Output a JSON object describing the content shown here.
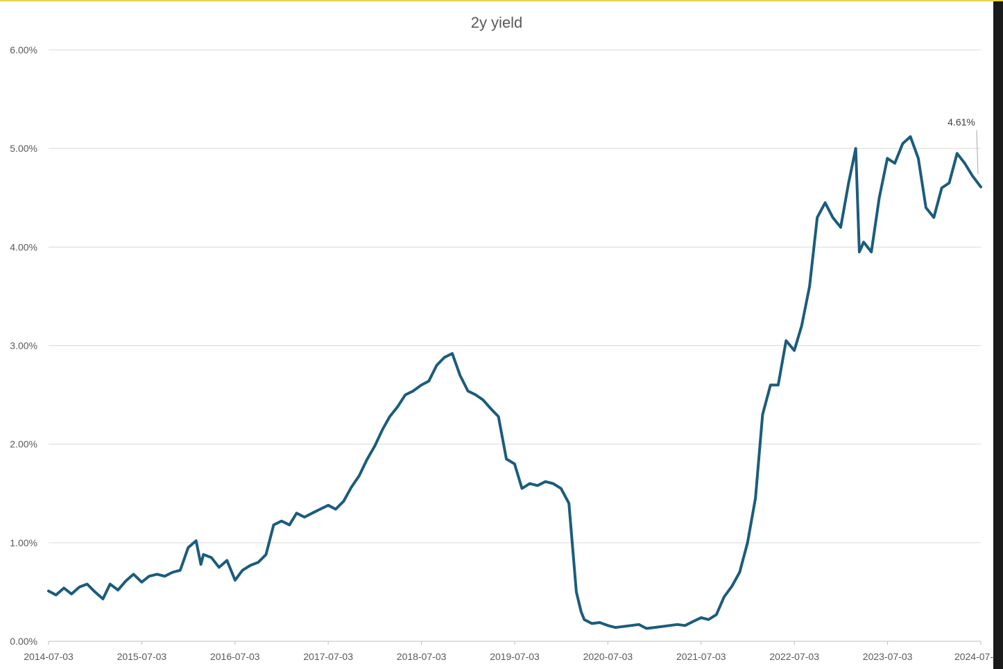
{
  "chart_data": {
    "type": "line",
    "title": "2y yield",
    "xlabel": "",
    "ylabel": "",
    "x_ticks": [
      "2014-07-03",
      "2015-07-03",
      "2016-07-03",
      "2017-07-03",
      "2018-07-03",
      "2019-07-03",
      "2020-07-03",
      "2021-07-03",
      "2022-07-03",
      "2023-07-03",
      "2024-07-"
    ],
    "y_ticks": [
      {
        "value": 0.0,
        "label": "0.00%"
      },
      {
        "value": 1.0,
        "label": "1.00%"
      },
      {
        "value": 2.0,
        "label": "2.00%"
      },
      {
        "value": 3.0,
        "label": "3.00%"
      },
      {
        "value": 4.0,
        "label": "4.00%"
      },
      {
        "value": 5.0,
        "label": "5.00%"
      },
      {
        "value": 6.0,
        "label": "6.00%"
      }
    ],
    "ylim": [
      0,
      6
    ],
    "xlim": [
      "2014-07-03",
      "2024-07-03"
    ],
    "grid": "horizontal",
    "legend": "none",
    "line_color": "#1b5c7c",
    "grid_color": "#d9d9d9",
    "end_label": "4.61%",
    "series": [
      {
        "values": [
          [
            "2014-07-03",
            0.51
          ],
          [
            "2014-08-01",
            0.47
          ],
          [
            "2014-09-01",
            0.54
          ],
          [
            "2014-10-01",
            0.48
          ],
          [
            "2014-11-01",
            0.55
          ],
          [
            "2014-12-01",
            0.58
          ],
          [
            "2015-01-01",
            0.5
          ],
          [
            "2015-02-01",
            0.43
          ],
          [
            "2015-03-01",
            0.58
          ],
          [
            "2015-04-01",
            0.52
          ],
          [
            "2015-05-01",
            0.61
          ],
          [
            "2015-06-01",
            0.68
          ],
          [
            "2015-07-03",
            0.6
          ],
          [
            "2015-08-01",
            0.66
          ],
          [
            "2015-09-01",
            0.68
          ],
          [
            "2015-10-01",
            0.66
          ],
          [
            "2015-11-01",
            0.7
          ],
          [
            "2015-12-01",
            0.72
          ],
          [
            "2016-01-01",
            0.95
          ],
          [
            "2016-02-01",
            1.02
          ],
          [
            "2016-02-20",
            0.78
          ],
          [
            "2016-03-01",
            0.88
          ],
          [
            "2016-04-01",
            0.85
          ],
          [
            "2016-05-01",
            0.75
          ],
          [
            "2016-06-01",
            0.82
          ],
          [
            "2016-07-03",
            0.62
          ],
          [
            "2016-08-01",
            0.72
          ],
          [
            "2016-09-01",
            0.77
          ],
          [
            "2016-10-01",
            0.8
          ],
          [
            "2016-11-01",
            0.88
          ],
          [
            "2016-12-01",
            1.18
          ],
          [
            "2017-01-01",
            1.22
          ],
          [
            "2017-02-01",
            1.18
          ],
          [
            "2017-03-01",
            1.3
          ],
          [
            "2017-04-01",
            1.26
          ],
          [
            "2017-05-01",
            1.3
          ],
          [
            "2017-06-01",
            1.34
          ],
          [
            "2017-07-03",
            1.38
          ],
          [
            "2017-08-01",
            1.34
          ],
          [
            "2017-09-01",
            1.42
          ],
          [
            "2017-10-01",
            1.56
          ],
          [
            "2017-11-01",
            1.68
          ],
          [
            "2017-12-01",
            1.84
          ],
          [
            "2018-01-01",
            1.98
          ],
          [
            "2018-02-01",
            2.15
          ],
          [
            "2018-03-01",
            2.28
          ],
          [
            "2018-04-01",
            2.38
          ],
          [
            "2018-05-01",
            2.5
          ],
          [
            "2018-06-01",
            2.54
          ],
          [
            "2018-07-03",
            2.6
          ],
          [
            "2018-08-01",
            2.64
          ],
          [
            "2018-09-01",
            2.8
          ],
          [
            "2018-10-01",
            2.88
          ],
          [
            "2018-11-01",
            2.92
          ],
          [
            "2018-12-01",
            2.7
          ],
          [
            "2019-01-01",
            2.54
          ],
          [
            "2019-02-01",
            2.5
          ],
          [
            "2019-03-01",
            2.45
          ],
          [
            "2019-04-01",
            2.36
          ],
          [
            "2019-05-01",
            2.28
          ],
          [
            "2019-06-01",
            1.85
          ],
          [
            "2019-07-03",
            1.8
          ],
          [
            "2019-08-01",
            1.55
          ],
          [
            "2019-09-01",
            1.6
          ],
          [
            "2019-10-01",
            1.58
          ],
          [
            "2019-11-01",
            1.62
          ],
          [
            "2019-12-01",
            1.6
          ],
          [
            "2020-01-01",
            1.55
          ],
          [
            "2020-02-01",
            1.4
          ],
          [
            "2020-03-01",
            0.5
          ],
          [
            "2020-03-20",
            0.3
          ],
          [
            "2020-04-01",
            0.22
          ],
          [
            "2020-05-01",
            0.18
          ],
          [
            "2020-06-01",
            0.19
          ],
          [
            "2020-07-03",
            0.16
          ],
          [
            "2020-08-01",
            0.14
          ],
          [
            "2020-09-01",
            0.15
          ],
          [
            "2020-10-01",
            0.16
          ],
          [
            "2020-11-01",
            0.17
          ],
          [
            "2020-12-01",
            0.13
          ],
          [
            "2021-01-01",
            0.14
          ],
          [
            "2021-02-01",
            0.15
          ],
          [
            "2021-03-01",
            0.16
          ],
          [
            "2021-04-01",
            0.17
          ],
          [
            "2021-05-01",
            0.16
          ],
          [
            "2021-06-01",
            0.2
          ],
          [
            "2021-07-03",
            0.24
          ],
          [
            "2021-08-01",
            0.22
          ],
          [
            "2021-09-01",
            0.27
          ],
          [
            "2021-10-01",
            0.45
          ],
          [
            "2021-11-01",
            0.56
          ],
          [
            "2021-12-01",
            0.7
          ],
          [
            "2022-01-01",
            1.0
          ],
          [
            "2022-02-01",
            1.45
          ],
          [
            "2022-03-01",
            2.3
          ],
          [
            "2022-04-01",
            2.6
          ],
          [
            "2022-05-01",
            2.6
          ],
          [
            "2022-06-01",
            3.05
          ],
          [
            "2022-07-03",
            2.95
          ],
          [
            "2022-08-01",
            3.2
          ],
          [
            "2022-09-01",
            3.6
          ],
          [
            "2022-10-01",
            4.3
          ],
          [
            "2022-11-01",
            4.45
          ],
          [
            "2022-12-01",
            4.3
          ],
          [
            "2023-01-01",
            4.2
          ],
          [
            "2023-02-01",
            4.65
          ],
          [
            "2023-03-01",
            5.0
          ],
          [
            "2023-03-15",
            3.95
          ],
          [
            "2023-04-01",
            4.05
          ],
          [
            "2023-05-01",
            3.95
          ],
          [
            "2023-06-01",
            4.5
          ],
          [
            "2023-07-03",
            4.9
          ],
          [
            "2023-08-01",
            4.85
          ],
          [
            "2023-09-01",
            5.05
          ],
          [
            "2023-10-01",
            5.12
          ],
          [
            "2023-11-01",
            4.9
          ],
          [
            "2023-12-01",
            4.4
          ],
          [
            "2024-01-01",
            4.3
          ],
          [
            "2024-02-01",
            4.6
          ],
          [
            "2024-03-01",
            4.65
          ],
          [
            "2024-04-01",
            4.95
          ],
          [
            "2024-05-01",
            4.85
          ],
          [
            "2024-06-01",
            4.72
          ],
          [
            "2024-07-03",
            4.61
          ]
        ]
      }
    ]
  }
}
